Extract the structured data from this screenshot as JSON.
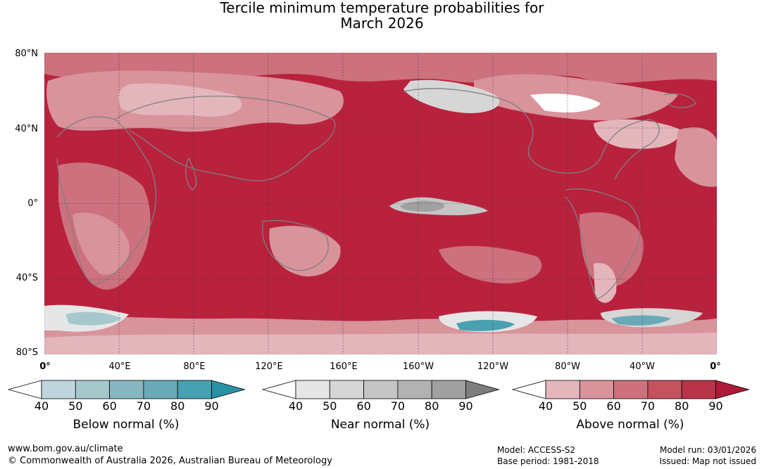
{
  "title": {
    "line1": "Tercile minimum temperature probabilities for",
    "line2": "March 2026"
  },
  "axes": {
    "lat_labels": [
      "80°N",
      "40°N",
      "0°",
      "40°S",
      "80°S"
    ],
    "lon_labels": [
      "0°",
      "40°E",
      "80°E",
      "120°E",
      "160°E",
      "160°W",
      "120°W",
      "80°W",
      "40°W",
      "0°"
    ]
  },
  "legends": [
    {
      "caption": "Below normal (%)",
      "ticks": [
        "40",
        "50",
        "60",
        "70",
        "80",
        "90"
      ],
      "colors": [
        "#ffffff",
        "#bdd5db",
        "#a6c8cd",
        "#88b7c1",
        "#6aa9b8",
        "#47a1b0",
        "#2a91a5"
      ]
    },
    {
      "caption": "Near normal (%)",
      "ticks": [
        "40",
        "50",
        "60",
        "70",
        "80",
        "90"
      ],
      "colors": [
        "#ffffff",
        "#e6e6e6",
        "#d6d6d6",
        "#c5c5c5",
        "#b2b2b2",
        "#a0a0a0",
        "#7d7d7d"
      ]
    },
    {
      "caption": "Above normal (%)",
      "ticks": [
        "40",
        "50",
        "60",
        "70",
        "80",
        "90"
      ],
      "colors": [
        "#ffffff",
        "#e3b6bc",
        "#d8939b",
        "#cc717d",
        "#c4525f",
        "#b93449",
        "#ae1b38"
      ]
    }
  ],
  "footer": {
    "website": "www.bom.gov.au/climate",
    "copyright": "© Commonwealth of Australia 2026, Australian Bureau of Meteorology",
    "model": "Model: ACCESS-S2",
    "base_period": "Base period: 1981-2018",
    "model_run": "Model run: 03/01/2026",
    "issued": "Issued: Map not issued"
  }
}
